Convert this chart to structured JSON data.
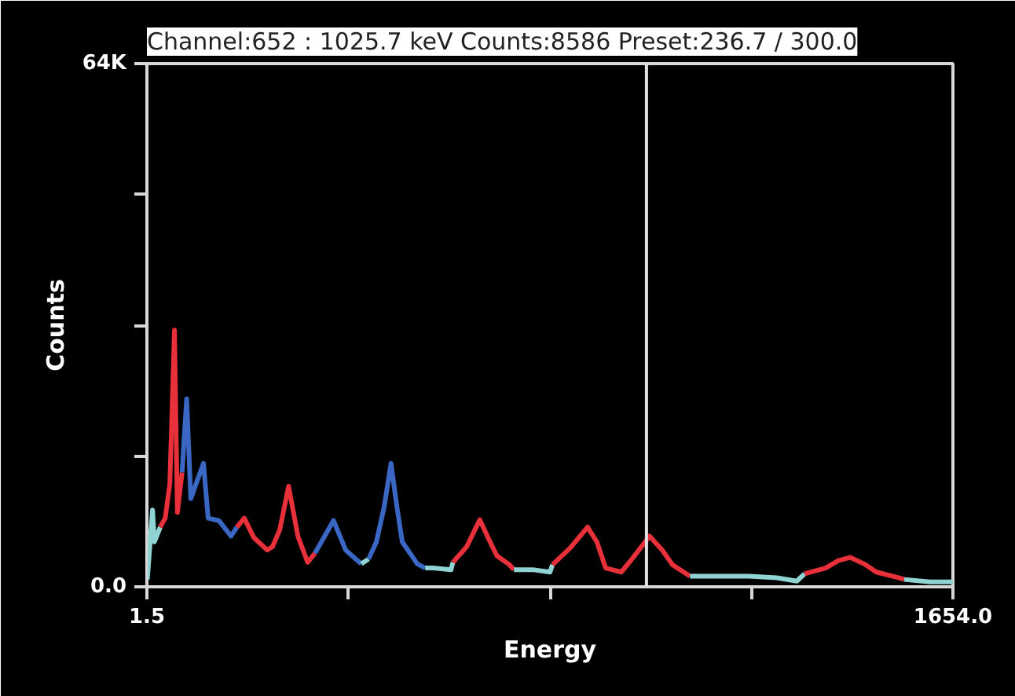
{
  "chart_data": {
    "type": "line",
    "title": "Channel:652 : 1025.7 keV Counts:8586 Preset:236.7 / 300.0",
    "xlabel": "Energy",
    "ylabel": "Counts",
    "xlim": [
      1.5,
      1654.0
    ],
    "ylim": [
      0,
      64000
    ],
    "xticks": [
      1.5,
      {
        "value": 414.6,
        "label": null
      },
      {
        "value": 827.8,
        "label": null
      },
      {
        "value": 1240.9,
        "label": null
      },
      {
        "value": 1654.0,
        "label": "1654.0"
      }
    ],
    "yticks": [
      {
        "value": 0,
        "label": "0.0"
      },
      {
        "value": 16000,
        "label": null
      },
      {
        "value": 32000,
        "label": null
      },
      {
        "value": 48000,
        "label": null
      },
      {
        "value": 64000,
        "label": "64K"
      }
    ],
    "grid": false,
    "line_style": "solid",
    "ref_lines": [
      {
        "axis": "x",
        "value": 1025.7,
        "color": "#e0e0e0"
      }
    ],
    "series": [
      {
        "color": "#8fd3d3",
        "x": [
          2.4,
          13,
          17,
          28.8
        ],
        "values": [
          900,
          9400,
          5500,
          7300
        ]
      },
      {
        "color": "#e8303a",
        "x": [
          28.8,
          39,
          48.5,
          58,
          64,
          73.6
        ],
        "values": [
          7300,
          8400,
          12600,
          31400,
          9100,
          14000
        ]
      },
      {
        "color": "#3a66c4",
        "x": [
          73.6,
          83,
          91.5,
          117.5,
          127,
          149,
          174,
          186
        ],
        "values": [
          14000,
          23000,
          10800,
          15100,
          8400,
          8100,
          6200,
          7300
        ]
      },
      {
        "color": "#e8303a",
        "x": [
          186,
          201,
          221,
          248,
          259,
          274,
          292,
          311,
          331,
          346
        ],
        "values": [
          7300,
          8400,
          6000,
          4500,
          4900,
          7000,
          12300,
          6200,
          3000,
          4100
        ]
      },
      {
        "color": "#3a66c4",
        "x": [
          346,
          384,
          409,
          441
        ],
        "values": [
          4100,
          8100,
          4500,
          2800
        ]
      },
      {
        "color": "#8fd3d3",
        "x": [
          441,
          456
        ],
        "values": [
          2800,
          3400
        ]
      },
      {
        "color": "#3a66c4",
        "x": [
          456,
          472,
          488,
          502,
          513,
          525,
          556,
          572
        ],
        "values": [
          3400,
          5500,
          9800,
          15100,
          10200,
          5500,
          2800,
          2300
        ]
      },
      {
        "color": "#8fd3d3",
        "x": [
          572,
          588,
          625,
          629
        ],
        "values": [
          2300,
          2300,
          2100,
          3000
        ]
      },
      {
        "color": "#e8303a",
        "x": [
          629,
          657,
          684,
          701,
          719,
          745,
          754
        ],
        "values": [
          3000,
          4900,
          8200,
          6000,
          3800,
          2700,
          2100
        ]
      },
      {
        "color": "#8fd3d3",
        "x": [
          754,
          792,
          828,
          833
        ],
        "values": [
          2100,
          2100,
          1800,
          2700
        ]
      },
      {
        "color": "#e8303a",
        "x": [
          833,
          870,
          905,
          924,
          942,
          974,
          996,
          1032,
          1058,
          1079,
          1115
        ],
        "values": [
          2700,
          4800,
          7300,
          5500,
          2300,
          1800,
          3400,
          6200,
          4500,
          2700,
          1300
        ]
      },
      {
        "color": "#8fd3d3",
        "x": [
          1115,
          1184,
          1236,
          1293,
          1334,
          1350
        ],
        "values": [
          1300,
          1300,
          1300,
          1100,
          700,
          1600
        ]
      },
      {
        "color": "#e8303a",
        "x": [
          1350,
          1393,
          1419,
          1443,
          1472,
          1497,
          1544,
          1554
        ],
        "values": [
          1600,
          2300,
          3200,
          3600,
          2800,
          1800,
          1100,
          900
        ]
      },
      {
        "color": "#8fd3d3",
        "x": [
          1554,
          1607,
          1654
        ],
        "values": [
          900,
          600,
          600
        ]
      }
    ]
  }
}
